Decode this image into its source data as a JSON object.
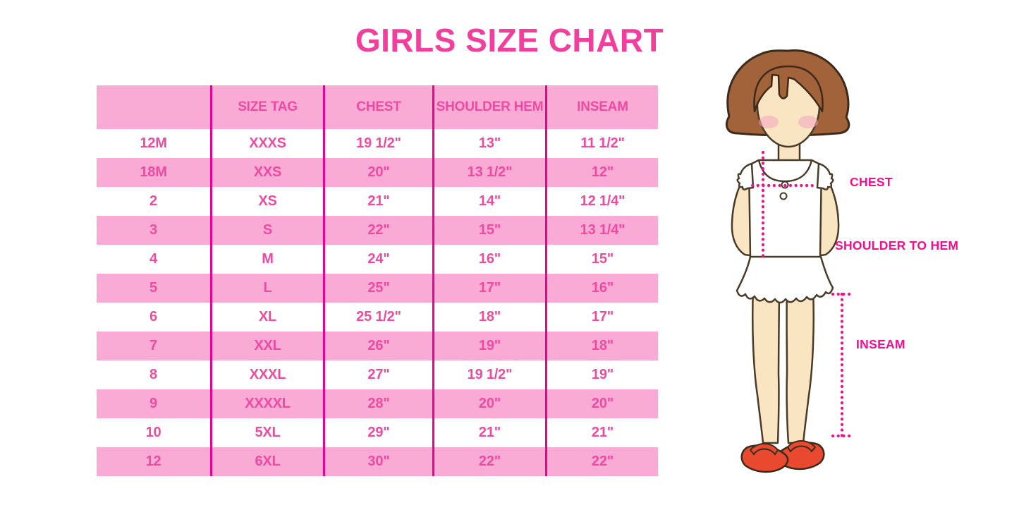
{
  "title": "GIRLS SIZE CHART",
  "colors": {
    "title_pink": "#F23F9D",
    "table_text_pink": "#EF4AA2",
    "row_pink": "#F9ABD6",
    "row_white": "#FFFFFF",
    "grid_line_magenta": "#EA0290",
    "label_pink": "#F30D90",
    "dotted_line_magenta": "#F2108F",
    "hair_brown": "#A2633A",
    "skin": "#FAE5C3",
    "shoe_red": "#E94A2F"
  },
  "table": {
    "headers": [
      "",
      "SIZE TAG",
      "CHEST",
      "SHOULDER HEM",
      "INSEAM"
    ],
    "rows": [
      [
        "12M",
        "XXXS",
        "19 1/2\"",
        "13\"",
        "11 1/2\""
      ],
      [
        "18M",
        "XXS",
        "20\"",
        "13 1/2\"",
        "12\""
      ],
      [
        "2",
        "XS",
        "21\"",
        "14\"",
        "12 1/4\""
      ],
      [
        "3",
        "S",
        "22\"",
        "15\"",
        "13 1/4\""
      ],
      [
        "4",
        "M",
        "24\"",
        "16\"",
        "15\""
      ],
      [
        "5",
        "L",
        "25\"",
        "17\"",
        "16\""
      ],
      [
        "6",
        "XL",
        "25 1/2\"",
        "18\"",
        "17\""
      ],
      [
        "7",
        "XXL",
        "26\"",
        "19\"",
        "18\""
      ],
      [
        "8",
        "XXXL",
        "27\"",
        "19 1/2\"",
        "19\""
      ],
      [
        "9",
        "XXXXL",
        "28\"",
        "20\"",
        "20\""
      ],
      [
        "10",
        "5XL",
        "29\"",
        "21\"",
        "21\""
      ],
      [
        "12",
        "6XL",
        "30\"",
        "22\"",
        "22\""
      ]
    ]
  },
  "diagram": {
    "labels": {
      "chest": "CHEST",
      "shoulder_to_hem": "SHOULDER TO HEM",
      "inseam": "INSEAM"
    }
  }
}
